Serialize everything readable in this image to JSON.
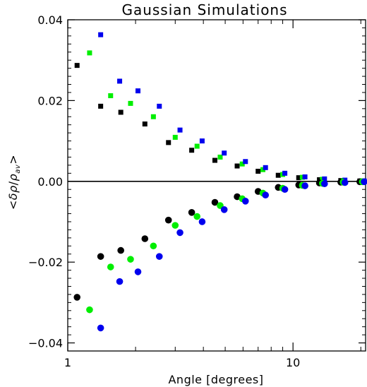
{
  "chart_data": {
    "type": "scatter",
    "title": "Gaussian Simulations",
    "xlabel": "Angle [degrees]",
    "ylabel": "<δρ/ρ_av>",
    "ylabel_parts": {
      "open": "<",
      "delta": "δ",
      "rho": "ρ",
      "slash": "/",
      "rho2": "ρ",
      "sub": "av",
      "close": ">"
    },
    "x_scale": "log",
    "xlim": [
      1.0,
      21.0
    ],
    "ylim": [
      -0.042,
      0.04
    ],
    "x_ticks": [
      1,
      10
    ],
    "x_tick_labels": [
      "1",
      "10"
    ],
    "y_ticks": [
      0.04,
      0.02,
      0.0,
      -0.02,
      -0.04
    ],
    "y_tick_labels": [
      "0.04",
      "0.02",
      "0.00",
      "−0.02",
      "−0.04"
    ],
    "zero_line": true,
    "grid": false,
    "series": [
      {
        "color": "#000000",
        "marker": "square",
        "points": [
          [
            1.1,
            0.0287
          ],
          [
            1.4,
            0.0186
          ],
          [
            1.72,
            0.0171
          ],
          [
            2.2,
            0.0142
          ],
          [
            2.8,
            0.0096
          ],
          [
            3.55,
            0.0077
          ],
          [
            4.5,
            0.0052
          ],
          [
            5.65,
            0.0038
          ],
          [
            7.0,
            0.0025
          ],
          [
            8.6,
            0.0015
          ],
          [
            10.6,
            0.0009
          ],
          [
            13.1,
            0.0004
          ],
          [
            16.3,
            0.0002
          ],
          [
            19.8,
            0.0001
          ]
        ]
      },
      {
        "color": "#00ee00",
        "marker": "square",
        "points": [
          [
            1.25,
            0.0318
          ],
          [
            1.55,
            0.0212
          ],
          [
            1.9,
            0.0193
          ],
          [
            2.4,
            0.016
          ],
          [
            3.0,
            0.0109
          ],
          [
            3.75,
            0.0087
          ],
          [
            4.75,
            0.006
          ],
          [
            5.95,
            0.0043
          ],
          [
            7.35,
            0.0029
          ],
          [
            9.0,
            0.0017
          ],
          [
            11.0,
            0.001
          ],
          [
            13.5,
            0.0005
          ],
          [
            16.7,
            0.0002
          ],
          [
            20.3,
            0.0001
          ]
        ]
      },
      {
        "color": "#0000ee",
        "marker": "square",
        "points": [
          [
            1.4,
            0.0363
          ],
          [
            1.7,
            0.0248
          ],
          [
            2.05,
            0.0224
          ],
          [
            2.55,
            0.0186
          ],
          [
            3.15,
            0.0127
          ],
          [
            3.95,
            0.01
          ],
          [
            4.95,
            0.007
          ],
          [
            6.15,
            0.0049
          ],
          [
            7.55,
            0.0034
          ],
          [
            9.2,
            0.002
          ],
          [
            11.3,
            0.0011
          ],
          [
            13.8,
            0.0006
          ],
          [
            17.0,
            0.0003
          ],
          [
            20.7,
            0.0001
          ]
        ]
      },
      {
        "color": "#000000",
        "marker": "circle",
        "points": [
          [
            1.1,
            -0.0287
          ],
          [
            1.4,
            -0.0186
          ],
          [
            1.72,
            -0.0171
          ],
          [
            2.2,
            -0.0142
          ],
          [
            2.8,
            -0.0096
          ],
          [
            3.55,
            -0.0077
          ],
          [
            4.5,
            -0.0052
          ],
          [
            5.65,
            -0.0038
          ],
          [
            7.0,
            -0.0025
          ],
          [
            8.6,
            -0.0015
          ],
          [
            10.6,
            -0.0009
          ],
          [
            13.1,
            -0.0004
          ],
          [
            16.3,
            -0.0002
          ],
          [
            19.8,
            -0.0001
          ]
        ]
      },
      {
        "color": "#00ee00",
        "marker": "circle",
        "points": [
          [
            1.25,
            -0.0318
          ],
          [
            1.55,
            -0.0212
          ],
          [
            1.9,
            -0.0193
          ],
          [
            2.4,
            -0.016
          ],
          [
            3.0,
            -0.0109
          ],
          [
            3.75,
            -0.0087
          ],
          [
            4.75,
            -0.006
          ],
          [
            5.95,
            -0.0043
          ],
          [
            7.35,
            -0.0029
          ],
          [
            9.0,
            -0.0017
          ],
          [
            11.0,
            -0.001
          ],
          [
            13.5,
            -0.0005
          ],
          [
            16.7,
            -0.0002
          ],
          [
            20.3,
            -0.0001
          ]
        ]
      },
      {
        "color": "#0000ee",
        "marker": "circle",
        "points": [
          [
            1.4,
            -0.0363
          ],
          [
            1.7,
            -0.0248
          ],
          [
            2.05,
            -0.0224
          ],
          [
            2.55,
            -0.0186
          ],
          [
            3.15,
            -0.0127
          ],
          [
            3.95,
            -0.01
          ],
          [
            4.95,
            -0.007
          ],
          [
            6.15,
            -0.0049
          ],
          [
            7.55,
            -0.0034
          ],
          [
            9.2,
            -0.002
          ],
          [
            11.3,
            -0.0011
          ],
          [
            13.8,
            -0.0006
          ],
          [
            17.0,
            -0.0003
          ],
          [
            20.7,
            -0.0001
          ]
        ]
      }
    ]
  }
}
